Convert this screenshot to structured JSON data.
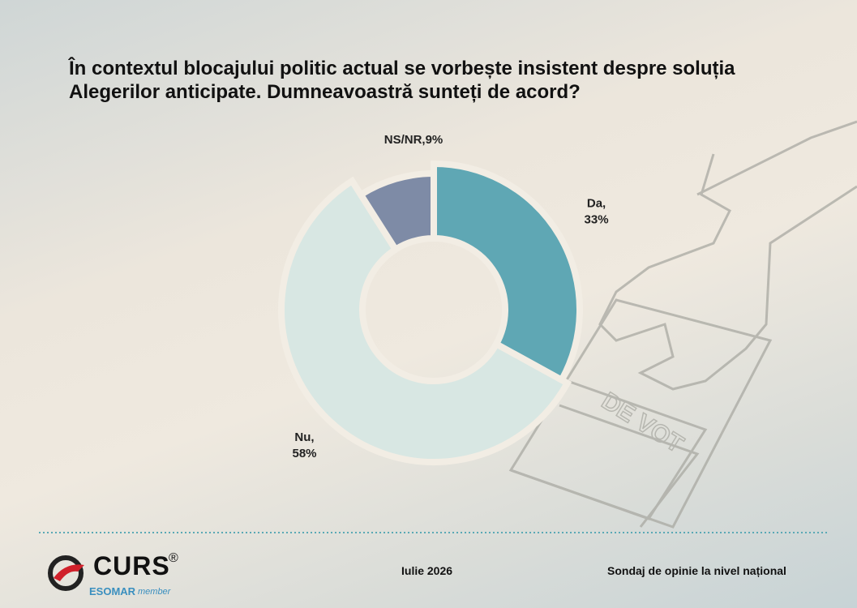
{
  "chart_data": {
    "type": "donut",
    "title": "În contextul blocajului politic actual se vorbește insistent despre soluția Alegerilor anticipate. Dumneavoastră sunteți de acord?",
    "categories": [
      "Da,",
      "Nu,",
      "NS/NR,"
    ],
    "values": [
      33,
      58,
      9
    ],
    "value_labels": [
      "33%",
      "58%",
      "9%"
    ],
    "colors": [
      "#5fa7b4",
      "#d8e7e3",
      "#7e8ba6"
    ]
  },
  "footer": {
    "logo": "CURS",
    "registered": "®",
    "esomar": "ESOMAR",
    "member": "member",
    "date": "Iulie 2026",
    "note": "Sondaj de opinie la nivel național"
  }
}
